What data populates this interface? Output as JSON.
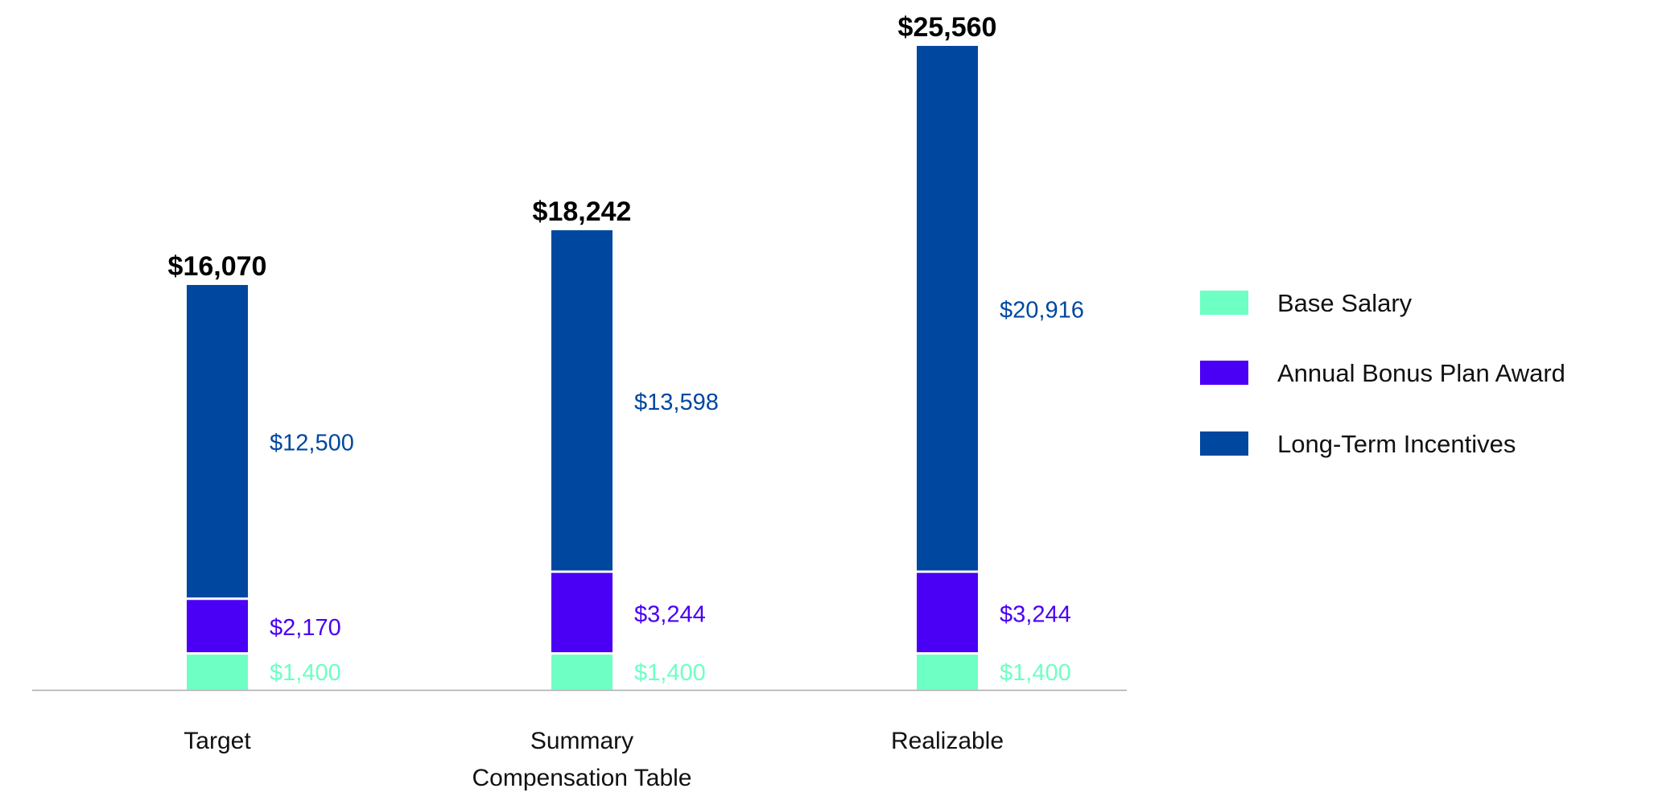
{
  "chart_data": {
    "type": "bar",
    "stacked": true,
    "title": "",
    "xlabel": "",
    "ylabel": "",
    "ylim": [
      0,
      25560
    ],
    "grid": false,
    "legend_position": "right",
    "categories": [
      "Target",
      "Summary Compensation Table",
      "Realizable"
    ],
    "category_lines": [
      [
        "Target"
      ],
      [
        "Summary",
        "Compensation Table"
      ],
      [
        "Realizable"
      ]
    ],
    "series": [
      {
        "name": "Base Salary",
        "color": "#6effc4",
        "values": [
          1400,
          1400,
          1400
        ],
        "labels": [
          "$1,400",
          "$1,400",
          "$1,400"
        ]
      },
      {
        "name": "Annual Bonus Plan Award",
        "color": "#4a00f5",
        "values": [
          2170,
          3244,
          3244
        ],
        "labels": [
          "$2,170",
          "$3,244",
          "$3,244"
        ]
      },
      {
        "name": "Long-Term Incentives",
        "color": "#00479f",
        "values": [
          12500,
          13598,
          20916
        ],
        "labels": [
          "$12,500",
          "$13,598",
          "$20,916"
        ]
      }
    ],
    "totals": [
      16070,
      18242,
      25560
    ],
    "total_labels": [
      "$16,070",
      "$18,242",
      "$25,560"
    ],
    "axis_color": "#aaaaaa"
  }
}
